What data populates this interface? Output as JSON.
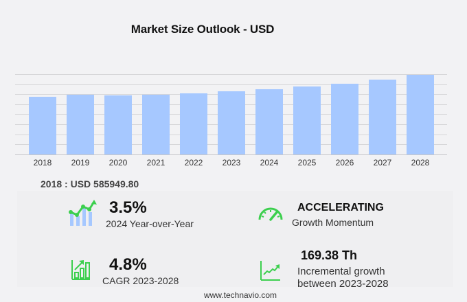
{
  "header": {
    "title": "Market Size Outlook  - USD"
  },
  "chart_data": {
    "type": "bar",
    "title": "Market Size Outlook - USD",
    "xlabel": "",
    "ylabel": "",
    "categories": [
      "2018",
      "2019",
      "2020",
      "2021",
      "2022",
      "2023",
      "2024",
      "2025",
      "2026",
      "2027",
      "2028"
    ],
    "values": [
      585949.8,
      606800,
      599900,
      609000,
      620800,
      641600,
      664100,
      690000,
      718000,
      760000,
      811000
    ],
    "ylim": [
      0,
      816000
    ],
    "grid": true,
    "bar_color": "#a6c8ff",
    "legend": null
  },
  "base_value": {
    "label": "2018 : USD  585949.80"
  },
  "stats": {
    "yoy": {
      "value": "3.5%",
      "label": "2024 Year-over-Year",
      "icon": "growth-chart-icon"
    },
    "momentum": {
      "value": "ACCELERATING",
      "label": "Growth Momentum",
      "icon": "speedometer-icon"
    },
    "cagr": {
      "value": "4.8%",
      "label": "CAGR 2023-2028",
      "icon": "bar-chart-arrow-icon"
    },
    "incremental": {
      "value": "169.38 Th",
      "label_line1": "Incremental growth",
      "label_line2": "between 2023-2028",
      "icon": "trend-line-icon"
    }
  },
  "colors": {
    "accent_green": "#3ccf4e",
    "bar": "#a6c8ff",
    "background": "#f2f2f4"
  },
  "footer": {
    "text": "www.technavio.com"
  }
}
